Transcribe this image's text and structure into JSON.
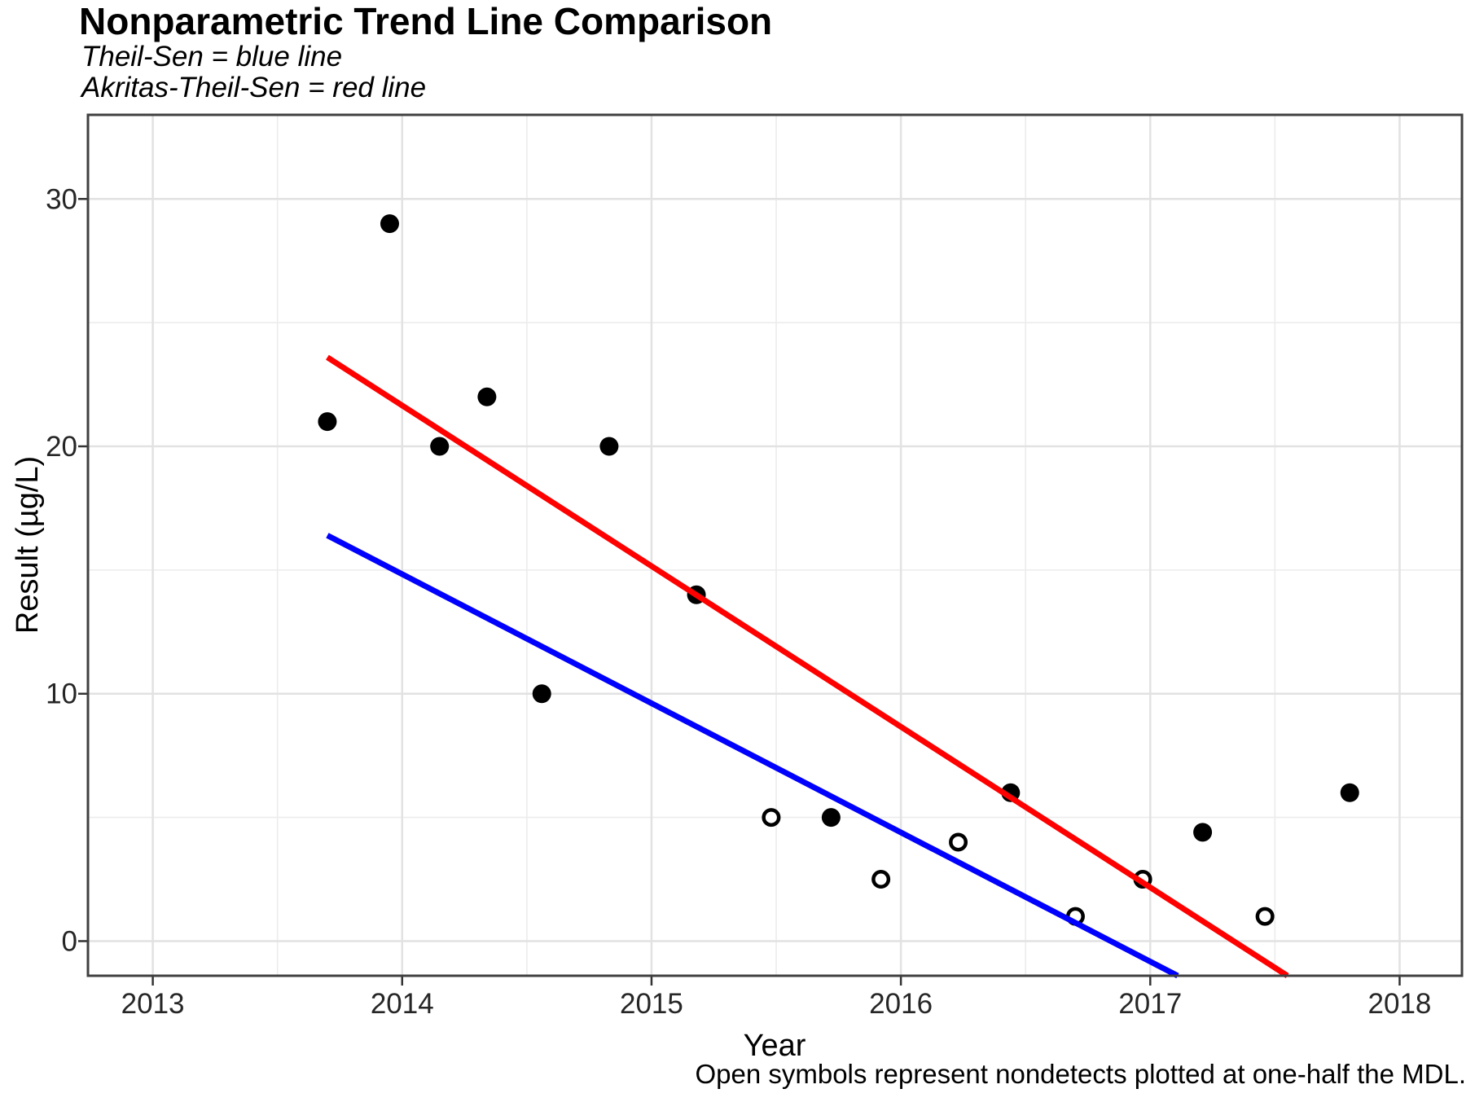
{
  "header": {
    "title": "Nonparametric Trend Line Comparison",
    "subtitle_line1": "Theil-Sen = blue line",
    "subtitle_line2": "Akritas-Theil-Sen = red line"
  },
  "chart_data": {
    "type": "scatter",
    "title": "Nonparametric Trend Line Comparison",
    "xlabel": "Year",
    "ylabel": "Result (µg/L)",
    "caption": "Open symbols represent nondetects plotted at one-half the MDL.",
    "xlim": [
      2012.74,
      2018.25
    ],
    "ylim": [
      -1.4,
      33.4
    ],
    "grid": true,
    "legend_position": "none",
    "x_major_ticks": [
      2013,
      2014,
      2015,
      2016,
      2017,
      2018
    ],
    "x_tick_labels": [
      "2013",
      "2014",
      "2015",
      "2016",
      "2017",
      "2018"
    ],
    "x_minor_ticks": [
      2013.5,
      2014.5,
      2015.5,
      2016.5,
      2017.5
    ],
    "y_major_ticks": [
      0,
      10,
      20,
      30
    ],
    "y_tick_labels": [
      "0",
      "10",
      "20",
      "30"
    ],
    "y_minor_ticks": [
      5,
      15,
      25
    ],
    "series": [
      {
        "name": "detects",
        "symbol": "filled-circle",
        "color": "#000000",
        "points": [
          [
            2013.7,
            21
          ],
          [
            2013.95,
            29
          ],
          [
            2014.15,
            20
          ],
          [
            2014.34,
            22
          ],
          [
            2014.56,
            10
          ],
          [
            2014.83,
            20
          ],
          [
            2015.18,
            14
          ],
          [
            2015.72,
            5
          ],
          [
            2016.44,
            6
          ],
          [
            2017.21,
            4.4
          ],
          [
            2017.8,
            6
          ]
        ]
      },
      {
        "name": "nondetects",
        "symbol": "open-circle",
        "color": "#000000",
        "points": [
          [
            2015.48,
            5
          ],
          [
            2015.92,
            2.5
          ],
          [
            2016.23,
            4
          ],
          [
            2016.7,
            1
          ],
          [
            2016.97,
            2.5
          ],
          [
            2017.46,
            1
          ]
        ]
      }
    ],
    "trend_lines": [
      {
        "name": "Theil-Sen",
        "color": "#0000FF",
        "start": [
          2013.7,
          16.4
        ],
        "end": [
          2017.11,
          -1.4
        ]
      },
      {
        "name": "Akritas-Theil-Sen",
        "color": "#FF0000",
        "start": [
          2013.7,
          23.6
        ],
        "end": [
          2017.55,
          -1.4
        ]
      }
    ],
    "style": {
      "grid_major_color": "#E2E2E2",
      "grid_minor_color": "#ECECEC",
      "panel_border_color": "#404040",
      "tick_color": "#333333",
      "background": "#FFFFFF"
    }
  }
}
